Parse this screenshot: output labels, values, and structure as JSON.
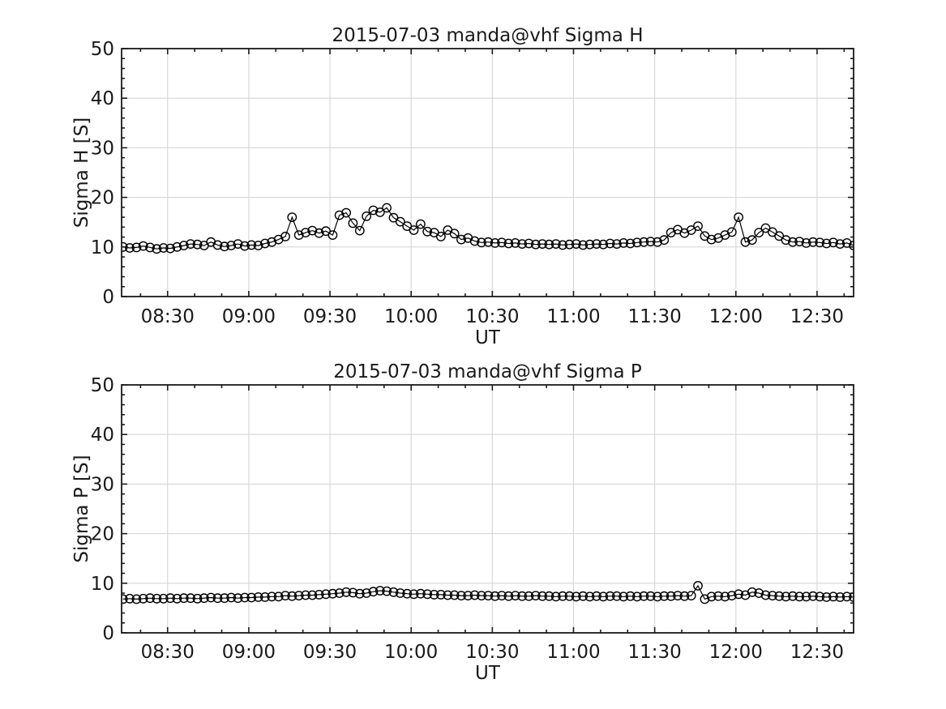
{
  "figure": {
    "background": "#ffffff",
    "axis_color": "#1a1a1a",
    "grid_color": "#d6d6d6",
    "data_color": "#000000"
  },
  "chart_data": [
    {
      "type": "line",
      "title": "2015-07-03  manda@vhf Sigma H",
      "xlabel": "UT",
      "ylabel": "Sigma H [S]",
      "ylim": [
        0,
        50
      ],
      "y_major_ticks": [
        0,
        10,
        20,
        30,
        40,
        50
      ],
      "y_minor_step": 2,
      "xlim_minutes": [
        493,
        763.5
      ],
      "x_major_ticks": [
        {
          "label": "08:30",
          "minutes": 510
        },
        {
          "label": "09:00",
          "minutes": 540
        },
        {
          "label": "09:30",
          "minutes": 570
        },
        {
          "label": "10:00",
          "minutes": 600
        },
        {
          "label": "10:30",
          "minutes": 630
        },
        {
          "label": "11:00",
          "minutes": 660
        },
        {
          "label": "11:30",
          "minutes": 690
        },
        {
          "label": "12:00",
          "minutes": 720
        },
        {
          "label": "12:30",
          "minutes": 750
        }
      ],
      "x_minor_step_minutes": 10,
      "grid": "major",
      "legend": "none",
      "marker": "open-circle",
      "x_start_minutes": 493.5,
      "x_step_minutes": 2.5,
      "values": [
        10.0,
        9.8,
        9.9,
        10.2,
        9.9,
        9.6,
        9.8,
        9.7,
        10.0,
        10.3,
        10.6,
        10.5,
        10.3,
        11.0,
        10.4,
        10.1,
        10.3,
        10.6,
        10.2,
        10.4,
        10.3,
        10.7,
        11.0,
        11.5,
        12.1,
        16.0,
        12.4,
        12.9,
        13.3,
        12.8,
        13.2,
        12.4,
        16.4,
        16.9,
        14.8,
        13.3,
        16.2,
        17.4,
        17.0,
        17.9,
        15.9,
        15.1,
        14.2,
        13.4,
        14.6,
        13.1,
        12.9,
        12.1,
        13.4,
        12.7,
        11.5,
        11.8,
        11.2,
        10.9,
        11.0,
        10.8,
        10.9,
        10.7,
        10.8,
        10.6,
        10.7,
        10.5,
        10.6,
        10.5,
        10.6,
        10.4,
        10.5,
        10.6,
        10.4,
        10.5,
        10.6,
        10.5,
        10.7,
        10.6,
        10.8,
        10.7,
        10.9,
        11.0,
        11.1,
        11.0,
        11.4,
        12.9,
        13.5,
        12.8,
        13.4,
        14.2,
        12.2,
        11.5,
        11.8,
        12.4,
        13.0,
        16.0,
        11.0,
        11.4,
        12.9,
        13.8,
        13.0,
        12.2,
        11.4,
        11.0,
        11.1,
        10.8,
        11.0,
        10.9,
        10.7,
        10.9,
        10.6,
        10.8,
        10.3
      ]
    },
    {
      "type": "line",
      "title": "2015-07-03  manda@vhf Sigma P",
      "xlabel": "UT",
      "ylabel": "Sigma P [S]",
      "ylim": [
        0,
        50
      ],
      "y_major_ticks": [
        0,
        10,
        20,
        30,
        40,
        50
      ],
      "y_minor_step": 2,
      "xlim_minutes": [
        493,
        763.5
      ],
      "x_major_ticks": [
        {
          "label": "08:30",
          "minutes": 510
        },
        {
          "label": "09:00",
          "minutes": 540
        },
        {
          "label": "09:30",
          "minutes": 570
        },
        {
          "label": "10:00",
          "minutes": 600
        },
        {
          "label": "10:30",
          "minutes": 630
        },
        {
          "label": "11:00",
          "minutes": 660
        },
        {
          "label": "11:30",
          "minutes": 690
        },
        {
          "label": "12:00",
          "minutes": 720
        },
        {
          "label": "12:30",
          "minutes": 750
        }
      ],
      "x_minor_step_minutes": 10,
      "grid": "major",
      "legend": "none",
      "marker": "open-circle",
      "x_start_minutes": 493.5,
      "x_step_minutes": 2.5,
      "values": [
        6.8,
        6.9,
        6.8,
        6.9,
        7.0,
        6.9,
        6.9,
        7.0,
        6.9,
        7.0,
        7.0,
        6.9,
        7.0,
        7.1,
        7.0,
        7.0,
        7.1,
        7.0,
        7.1,
        7.1,
        7.2,
        7.2,
        7.3,
        7.3,
        7.5,
        7.4,
        7.5,
        7.6,
        7.6,
        7.7,
        7.8,
        7.9,
        8.0,
        8.2,
        8.1,
        7.9,
        8.0,
        8.3,
        8.5,
        8.4,
        8.2,
        8.0,
        7.9,
        7.8,
        7.9,
        7.8,
        7.7,
        7.7,
        7.6,
        7.6,
        7.5,
        7.5,
        7.6,
        7.5,
        7.5,
        7.4,
        7.5,
        7.4,
        7.5,
        7.4,
        7.4,
        7.5,
        7.4,
        7.4,
        7.3,
        7.4,
        7.4,
        7.3,
        7.4,
        7.3,
        7.4,
        7.3,
        7.4,
        7.4,
        7.3,
        7.4,
        7.3,
        7.4,
        7.4,
        7.3,
        7.4,
        7.4,
        7.5,
        7.4,
        7.5,
        9.5,
        6.8,
        7.3,
        7.4,
        7.3,
        7.5,
        7.8,
        7.6,
        8.2,
        8.0,
        7.6,
        7.5,
        7.4,
        7.3,
        7.4,
        7.3,
        7.3,
        7.4,
        7.3,
        7.2,
        7.3,
        7.2,
        7.3,
        7.2
      ]
    }
  ]
}
